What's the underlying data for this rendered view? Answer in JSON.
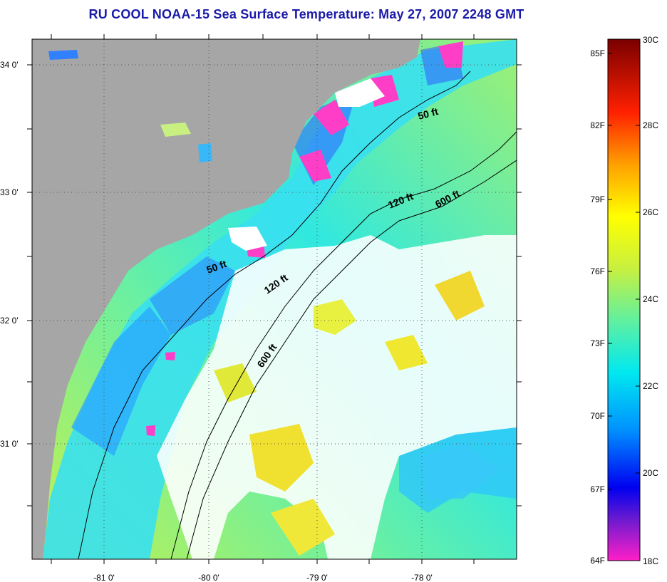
{
  "title": "RU COOL  NOAA-15  Sea Surface Temperature:  May 27, 2007 2248 GMT",
  "map": {
    "lat_labels": [
      "34 0'",
      "33 0'",
      "32 0'",
      "31 0'"
    ],
    "lon_labels": [
      "-81 0'",
      "-80 0'",
      "-79 0'",
      "-78 0'"
    ],
    "contour_labels": {
      "c50_north": "50 ft",
      "c50_south": "50 ft",
      "c120_north": "120 ft",
      "c120_south": "120 ft",
      "c600_north": "600 ft",
      "c600_south": "600 ft"
    },
    "colors": {
      "land": "#a6a6a6",
      "cloud": "#ffffff",
      "contour": "#000000"
    }
  },
  "colorbar": {
    "fahrenheit_labels": [
      "85F",
      "82F",
      "79F",
      "76F",
      "73F",
      "70F",
      "67F",
      "64F"
    ],
    "celsius_labels": [
      "30C",
      "28C",
      "26C",
      "24C",
      "22C",
      "20C",
      "18C"
    ],
    "range_c": [
      18,
      30
    ],
    "colors": [
      "#ff1fc8",
      "#6a1ad0",
      "#0000f0",
      "#0090ff",
      "#00e8f0",
      "#60f0a0",
      "#c8f040",
      "#ffff00",
      "#ffa000",
      "#ff2000",
      "#7a0000"
    ]
  }
}
